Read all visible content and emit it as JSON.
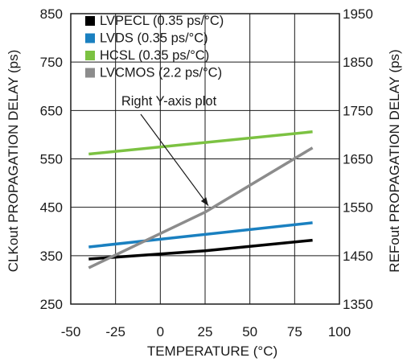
{
  "chart_data": {
    "type": "line",
    "xlabel": "TEMPERATURE (°C)",
    "ylabel_left": "CLKout PROPAGATION DELAY (ps)",
    "ylabel_right": "REFout PROPAGATION DELAY (ps)",
    "xlim": [
      -50,
      100
    ],
    "ylim_left": [
      250,
      850
    ],
    "ylim_right": [
      1350,
      1950
    ],
    "xticks": [
      "-50",
      "-25",
      "0",
      "25",
      "50",
      "75",
      "100"
    ],
    "yticks_left": [
      "250",
      "350",
      "450",
      "550",
      "650",
      "750",
      "850"
    ],
    "yticks_right": [
      "1350",
      "1450",
      "1550",
      "1650",
      "1750",
      "1850",
      "1950"
    ],
    "grid": true,
    "legend_position": "top-left",
    "series": [
      {
        "name": "LVPECL (0.35 ps/°C)",
        "axis": "left",
        "color": "#000000",
        "x": [
          -40,
          25,
          85
        ],
        "y": [
          343,
          360,
          382
        ]
      },
      {
        "name": "LVDS (0.35 ps/°C)",
        "axis": "left",
        "color": "#1a80c0",
        "x": [
          -40,
          85
        ],
        "y": [
          368,
          418
        ]
      },
      {
        "name": "HCSL (0.35 ps/°C)",
        "axis": "left",
        "color": "#7cc242",
        "x": [
          -40,
          85
        ],
        "y": [
          560,
          606
        ]
      },
      {
        "name": "LVCMOS (2.2 ps/°C)",
        "axis": "right",
        "color": "#8c8c8c",
        "x": [
          -40,
          25,
          85
        ],
        "y": [
          1425,
          1540,
          1673
        ]
      }
    ],
    "annotation": {
      "text": "Right Y-axis plot",
      "target_x": 25,
      "target_y_right": 1540
    }
  }
}
